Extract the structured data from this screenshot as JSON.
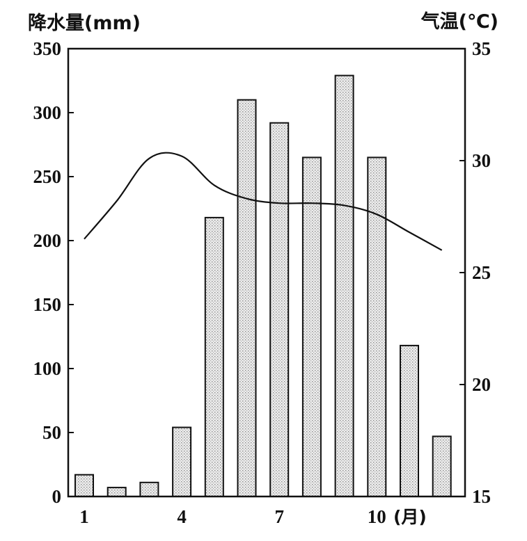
{
  "chart_data": {
    "type": "bar+line",
    "left_axis_title": "降水量(mm)",
    "right_axis_title": "气温(℃)",
    "x_unit": "(月)",
    "months": [
      1,
      2,
      3,
      4,
      5,
      6,
      7,
      8,
      9,
      10,
      11,
      12
    ],
    "x_tick_labels": [
      "1",
      "4",
      "7",
      "10"
    ],
    "x_tick_months": [
      1,
      4,
      7,
      10
    ],
    "precipitation": {
      "values": [
        17,
        7,
        11,
        54,
        218,
        310,
        292,
        265,
        329,
        265,
        118,
        47
      ],
      "ylim": [
        0,
        350
      ],
      "ticks": [
        0,
        50,
        100,
        150,
        200,
        250,
        300,
        350
      ]
    },
    "temperature": {
      "values": [
        26.5,
        28.2,
        30.1,
        30.2,
        28.9,
        28.3,
        28.1,
        28.1,
        28.0,
        27.6,
        26.8,
        26.0
      ],
      "ylim": [
        15,
        35
      ],
      "ticks": [
        15,
        20,
        25,
        30,
        35
      ]
    }
  }
}
